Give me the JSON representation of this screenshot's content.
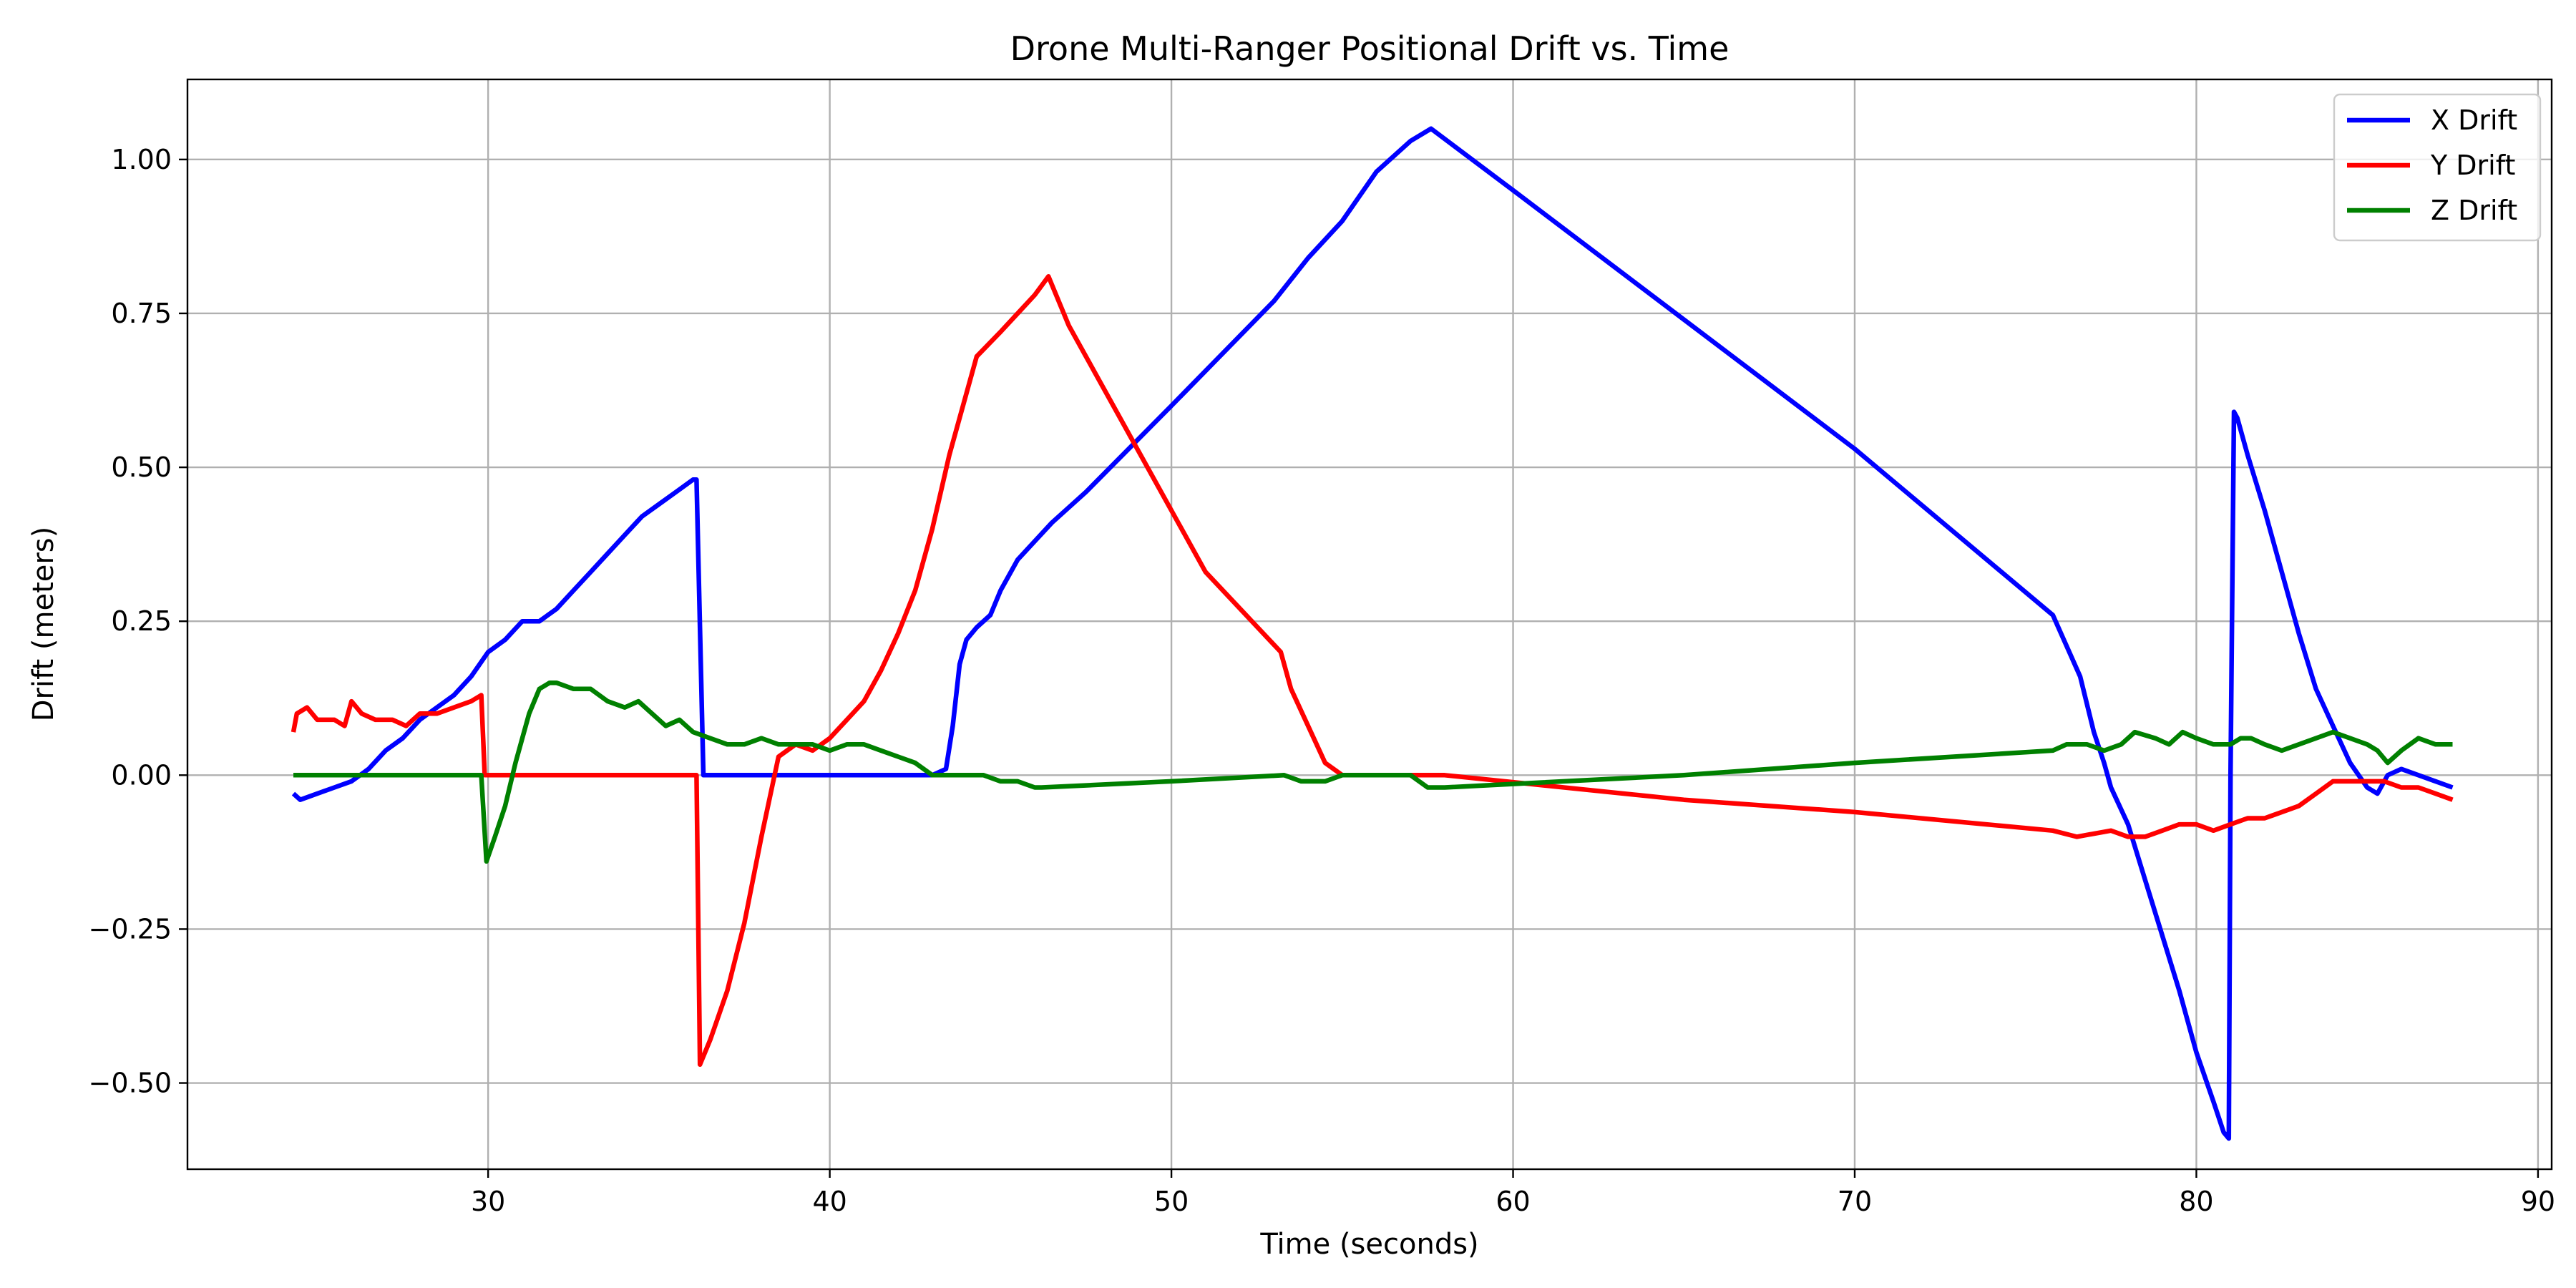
{
  "chart_data": {
    "type": "line",
    "title": "Drone Multi-Ranger Positional Drift vs. Time",
    "xlabel": "Time (seconds)",
    "ylabel": "Drift (meters)",
    "xlim": [
      21.2,
      90.4
    ],
    "ylim": [
      -0.64,
      1.13
    ],
    "xticks": [
      30,
      40,
      50,
      60,
      70,
      80,
      90
    ],
    "xtick_labels": [
      "30",
      "40",
      "50",
      "60",
      "70",
      "80",
      "90"
    ],
    "yticks": [
      -0.5,
      -0.25,
      0.0,
      0.25,
      0.5,
      0.75,
      1.0
    ],
    "ytick_labels": [
      "−0.50",
      "−0.25",
      "0.00",
      "0.25",
      "0.50",
      "0.75",
      "1.00"
    ],
    "grid": true,
    "legend_position": "top-right",
    "series": [
      {
        "name": "X Drift",
        "color": "#0000ff",
        "points": [
          [
            24.3,
            -0.03
          ],
          [
            24.5,
            -0.04
          ],
          [
            25.0,
            -0.03
          ],
          [
            25.5,
            -0.02
          ],
          [
            26.0,
            -0.01
          ],
          [
            26.5,
            0.01
          ],
          [
            27.0,
            0.04
          ],
          [
            27.5,
            0.06
          ],
          [
            28.0,
            0.09
          ],
          [
            28.5,
            0.11
          ],
          [
            29.0,
            0.13
          ],
          [
            29.5,
            0.16
          ],
          [
            30.0,
            0.2
          ],
          [
            30.5,
            0.22
          ],
          [
            31.0,
            0.25
          ],
          [
            31.5,
            0.25
          ],
          [
            32.0,
            0.27
          ],
          [
            32.5,
            0.3
          ],
          [
            33.0,
            0.33
          ],
          [
            33.5,
            0.36
          ],
          [
            34.0,
            0.39
          ],
          [
            34.5,
            0.42
          ],
          [
            35.0,
            0.44
          ],
          [
            35.5,
            0.46
          ],
          [
            36.0,
            0.48
          ],
          [
            36.1,
            0.48
          ],
          [
            36.3,
            0.0
          ],
          [
            37.0,
            0.0
          ],
          [
            40.0,
            0.0
          ],
          [
            43.0,
            0.0
          ],
          [
            43.4,
            0.01
          ],
          [
            43.6,
            0.08
          ],
          [
            43.8,
            0.18
          ],
          [
            44.0,
            0.22
          ],
          [
            44.3,
            0.24
          ],
          [
            44.7,
            0.26
          ],
          [
            45.0,
            0.3
          ],
          [
            45.5,
            0.35
          ],
          [
            46.0,
            0.38
          ],
          [
            46.5,
            0.41
          ],
          [
            47.5,
            0.46
          ],
          [
            50.0,
            0.6
          ],
          [
            53.0,
            0.77
          ],
          [
            54.0,
            0.84
          ],
          [
            55.0,
            0.9
          ],
          [
            56.0,
            0.98
          ],
          [
            57.0,
            1.03
          ],
          [
            57.6,
            1.05
          ],
          [
            60.0,
            0.95
          ],
          [
            65.0,
            0.74
          ],
          [
            70.0,
            0.53
          ],
          [
            75.8,
            0.26
          ],
          [
            76.2,
            0.21
          ],
          [
            76.6,
            0.16
          ],
          [
            77.0,
            0.07
          ],
          [
            77.3,
            0.02
          ],
          [
            77.5,
            -0.02
          ],
          [
            78.0,
            -0.08
          ],
          [
            78.5,
            -0.17
          ],
          [
            79.0,
            -0.26
          ],
          [
            79.5,
            -0.35
          ],
          [
            80.0,
            -0.45
          ],
          [
            80.5,
            -0.53
          ],
          [
            80.8,
            -0.58
          ],
          [
            80.95,
            -0.59
          ],
          [
            81.0,
            0.0
          ],
          [
            81.1,
            0.59
          ],
          [
            81.2,
            0.58
          ],
          [
            81.5,
            0.52
          ],
          [
            82.0,
            0.43
          ],
          [
            82.5,
            0.33
          ],
          [
            83.0,
            0.23
          ],
          [
            83.5,
            0.14
          ],
          [
            84.0,
            0.08
          ],
          [
            84.5,
            0.02
          ],
          [
            85.0,
            -0.02
          ],
          [
            85.3,
            -0.03
          ],
          [
            85.6,
            0.0
          ],
          [
            86.0,
            0.01
          ],
          [
            86.5,
            0.0
          ],
          [
            87.0,
            -0.01
          ],
          [
            87.5,
            -0.02
          ]
        ]
      },
      {
        "name": "Y Drift",
        "color": "#ff0000",
        "points": [
          [
            24.3,
            0.07
          ],
          [
            24.4,
            0.1
          ],
          [
            24.7,
            0.11
          ],
          [
            25.0,
            0.09
          ],
          [
            25.5,
            0.09
          ],
          [
            25.8,
            0.08
          ],
          [
            26.0,
            0.12
          ],
          [
            26.3,
            0.1
          ],
          [
            26.7,
            0.09
          ],
          [
            27.2,
            0.09
          ],
          [
            27.6,
            0.08
          ],
          [
            28.0,
            0.1
          ],
          [
            28.5,
            0.1
          ],
          [
            29.0,
            0.11
          ],
          [
            29.5,
            0.12
          ],
          [
            29.8,
            0.13
          ],
          [
            29.9,
            0.0
          ],
          [
            30.5,
            0.0
          ],
          [
            35.0,
            0.0
          ],
          [
            36.1,
            0.0
          ],
          [
            36.2,
            -0.47
          ],
          [
            36.5,
            -0.43
          ],
          [
            37.0,
            -0.35
          ],
          [
            37.5,
            -0.24
          ],
          [
            38.0,
            -0.1
          ],
          [
            38.5,
            0.03
          ],
          [
            39.0,
            0.05
          ],
          [
            39.5,
            0.04
          ],
          [
            40.0,
            0.06
          ],
          [
            40.5,
            0.09
          ],
          [
            41.0,
            0.12
          ],
          [
            41.5,
            0.17
          ],
          [
            42.0,
            0.23
          ],
          [
            42.5,
            0.3
          ],
          [
            43.0,
            0.4
          ],
          [
            43.5,
            0.52
          ],
          [
            44.0,
            0.62
          ],
          [
            44.3,
            0.68
          ],
          [
            45.0,
            0.72
          ],
          [
            45.5,
            0.75
          ],
          [
            46.0,
            0.78
          ],
          [
            46.4,
            0.81
          ],
          [
            47.0,
            0.73
          ],
          [
            49.0,
            0.53
          ],
          [
            51.0,
            0.33
          ],
          [
            53.2,
            0.2
          ],
          [
            53.5,
            0.14
          ],
          [
            54.0,
            0.08
          ],
          [
            54.5,
            0.02
          ],
          [
            55.0,
            0.0
          ],
          [
            57.5,
            0.0
          ],
          [
            58.0,
            0.0
          ],
          [
            65.0,
            -0.04
          ],
          [
            70.0,
            -0.06
          ],
          [
            75.8,
            -0.09
          ],
          [
            76.5,
            -0.1
          ],
          [
            77.5,
            -0.09
          ],
          [
            78.0,
            -0.1
          ],
          [
            78.5,
            -0.1
          ],
          [
            79.0,
            -0.09
          ],
          [
            79.5,
            -0.08
          ],
          [
            80.0,
            -0.08
          ],
          [
            80.5,
            -0.09
          ],
          [
            81.0,
            -0.08
          ],
          [
            81.5,
            -0.07
          ],
          [
            82.0,
            -0.07
          ],
          [
            82.5,
            -0.06
          ],
          [
            83.0,
            -0.05
          ],
          [
            83.5,
            -0.03
          ],
          [
            84.0,
            -0.01
          ],
          [
            84.5,
            -0.01
          ],
          [
            85.0,
            -0.01
          ],
          [
            85.5,
            -0.01
          ],
          [
            86.0,
            -0.02
          ],
          [
            86.5,
            -0.02
          ],
          [
            87.0,
            -0.03
          ],
          [
            87.5,
            -0.04
          ]
        ]
      },
      {
        "name": "Z Drift",
        "color": "#008000",
        "points": [
          [
            24.3,
            0.0
          ],
          [
            29.8,
            0.0
          ],
          [
            29.95,
            -0.14
          ],
          [
            30.2,
            -0.1
          ],
          [
            30.5,
            -0.05
          ],
          [
            30.8,
            0.02
          ],
          [
            31.0,
            0.06
          ],
          [
            31.2,
            0.1
          ],
          [
            31.5,
            0.14
          ],
          [
            31.8,
            0.15
          ],
          [
            32.0,
            0.15
          ],
          [
            32.5,
            0.14
          ],
          [
            33.0,
            0.14
          ],
          [
            33.5,
            0.12
          ],
          [
            34.0,
            0.11
          ],
          [
            34.4,
            0.12
          ],
          [
            34.8,
            0.1
          ],
          [
            35.2,
            0.08
          ],
          [
            35.6,
            0.09
          ],
          [
            36.0,
            0.07
          ],
          [
            36.5,
            0.06
          ],
          [
            37.0,
            0.05
          ],
          [
            37.5,
            0.05
          ],
          [
            38.0,
            0.06
          ],
          [
            38.5,
            0.05
          ],
          [
            39.0,
            0.05
          ],
          [
            39.5,
            0.05
          ],
          [
            40.0,
            0.04
          ],
          [
            40.5,
            0.05
          ],
          [
            41.0,
            0.05
          ],
          [
            41.5,
            0.04
          ],
          [
            42.0,
            0.03
          ],
          [
            42.5,
            0.02
          ],
          [
            43.0,
            0.0
          ],
          [
            43.5,
            0.0
          ],
          [
            44.0,
            0.0
          ],
          [
            44.5,
            0.0
          ],
          [
            45.0,
            -0.01
          ],
          [
            45.5,
            -0.01
          ],
          [
            46.0,
            -0.02
          ],
          [
            46.2,
            -0.02
          ],
          [
            50.0,
            -0.01
          ],
          [
            53.3,
            0.0
          ],
          [
            53.8,
            -0.01
          ],
          [
            54.5,
            -0.01
          ],
          [
            55.0,
            0.0
          ],
          [
            55.5,
            0.0
          ],
          [
            56.0,
            0.0
          ],
          [
            56.5,
            0.0
          ],
          [
            57.0,
            0.0
          ],
          [
            57.5,
            -0.02
          ],
          [
            58.0,
            -0.02
          ],
          [
            65.0,
            0.0
          ],
          [
            70.0,
            0.02
          ],
          [
            75.8,
            0.04
          ],
          [
            76.2,
            0.05
          ],
          [
            76.8,
            0.05
          ],
          [
            77.3,
            0.04
          ],
          [
            77.8,
            0.05
          ],
          [
            78.2,
            0.07
          ],
          [
            78.8,
            0.06
          ],
          [
            79.2,
            0.05
          ],
          [
            79.6,
            0.07
          ],
          [
            80.0,
            0.06
          ],
          [
            80.5,
            0.05
          ],
          [
            81.0,
            0.05
          ],
          [
            81.3,
            0.06
          ],
          [
            81.6,
            0.06
          ],
          [
            82.0,
            0.05
          ],
          [
            82.5,
            0.04
          ],
          [
            83.0,
            0.05
          ],
          [
            83.5,
            0.06
          ],
          [
            84.0,
            0.07
          ],
          [
            84.5,
            0.06
          ],
          [
            85.0,
            0.05
          ],
          [
            85.3,
            0.04
          ],
          [
            85.6,
            0.02
          ],
          [
            86.0,
            0.04
          ],
          [
            86.5,
            0.06
          ],
          [
            87.0,
            0.05
          ],
          [
            87.5,
            0.05
          ]
        ]
      }
    ]
  }
}
